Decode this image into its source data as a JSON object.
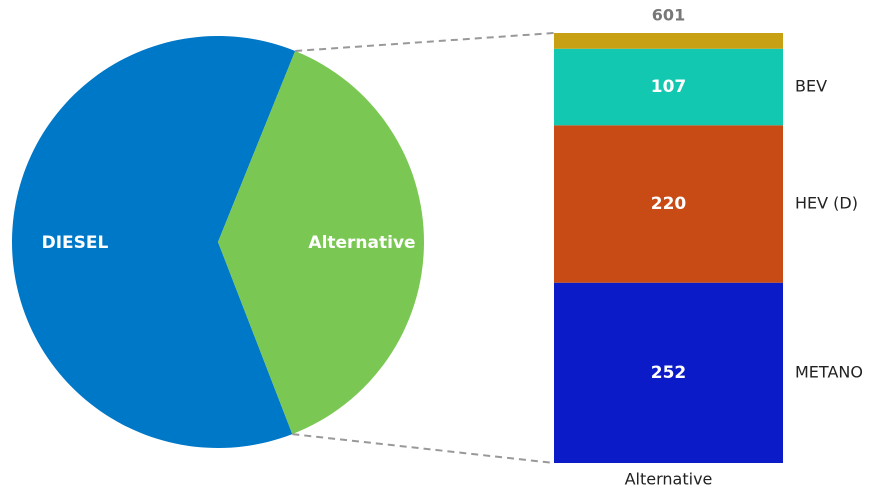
{
  "chart_data": {
    "type": "pie-of-bar",
    "pie": {
      "categories": [
        "DIESEL",
        "Alternative"
      ],
      "values": [
        980,
        601
      ],
      "colors": [
        "#0078c8",
        "#7ac853"
      ]
    },
    "bar": {
      "category": "Alternative",
      "names": [
        "METANO",
        "HEV (D)",
        "BEV",
        null
      ],
      "values": [
        252,
        220,
        107,
        22
      ],
      "colors": [
        "#0c1bc8",
        "#c84a14",
        "#12c8b0",
        "#c8a014"
      ]
    }
  }
}
